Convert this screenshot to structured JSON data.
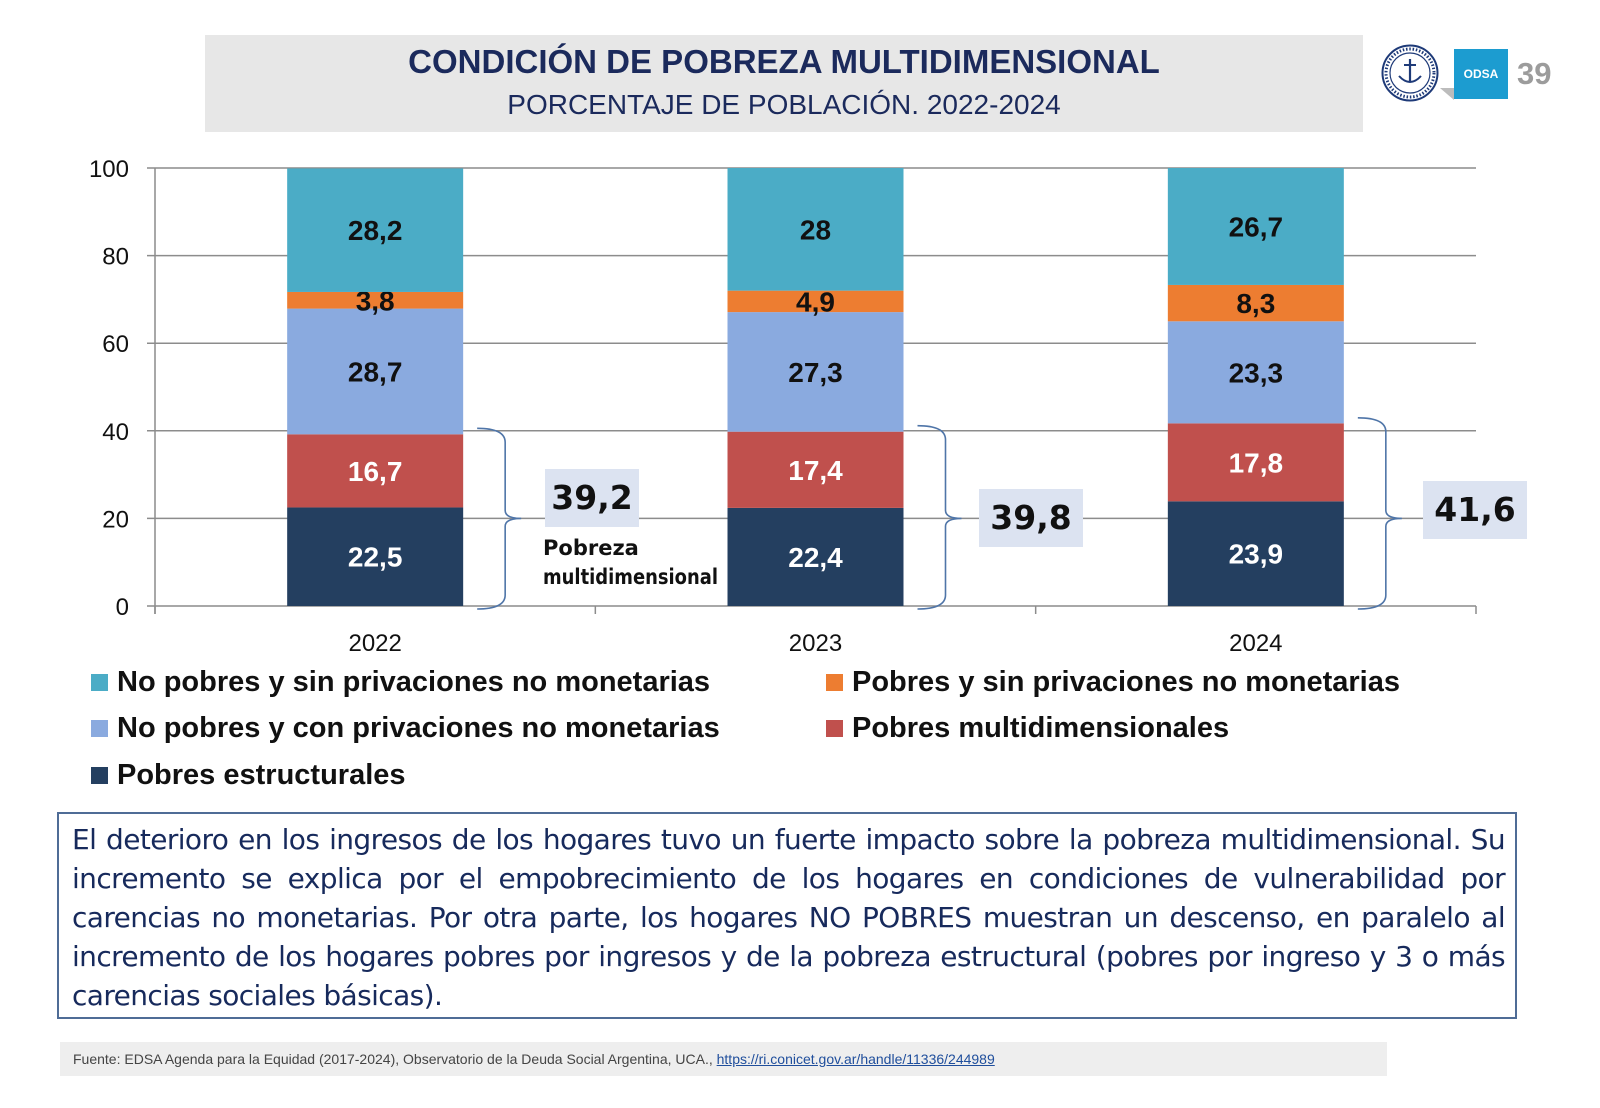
{
  "header": {
    "title": "CONDICIÓN DE POBREZA MULTIDIMENSIONAL",
    "subtitle": "PORCENTAJE DE POBLACIÓN. 2022-2024",
    "logo_odsa": "ODSA",
    "logo_seal_text": "UNIVERSIDAD CATÓLICA ARGENTINA",
    "page_number": "39"
  },
  "chart_data": {
    "type": "bar",
    "stacked": true,
    "title": "CONDICIÓN DE POBREZA MULTIDIMENSIONAL",
    "subtitle": "PORCENTAJE DE POBLACIÓN. 2022-2024",
    "xlabel": "",
    "ylabel": "",
    "ylim": [
      0,
      100
    ],
    "yticks": [
      "0",
      "20",
      "40",
      "60",
      "80",
      "100"
    ],
    "ytick_values": [
      0,
      20,
      40,
      60,
      80,
      100
    ],
    "grid": true,
    "legend_position": "bottom",
    "categories": [
      "2022",
      "2023",
      "2024"
    ],
    "series": [
      {
        "name": "Pobres estructurales",
        "color": "#243f60",
        "label_color": "#ffffff",
        "values": [
          22.5,
          22.4,
          23.9
        ],
        "labels": [
          "22,5",
          "22,4",
          "23,9"
        ]
      },
      {
        "name": "Pobres multidimensionales",
        "color": "#c0504d",
        "label_color": "#ffffff",
        "values": [
          16.7,
          17.4,
          17.8
        ],
        "labels": [
          "16,7",
          "17,4",
          "17,8"
        ]
      },
      {
        "name": "No pobres y con privaciones no monetarias",
        "color": "#8aaadf",
        "label_color": "#111111",
        "values": [
          28.7,
          27.3,
          23.3
        ],
        "labels": [
          "28,7",
          "27,3",
          "23,3"
        ]
      },
      {
        "name": "Pobres y sin privaciones no monetarias",
        "color": "#ed7d31",
        "label_color": "#111111",
        "values": [
          3.8,
          4.9,
          8.3
        ],
        "labels": [
          "3,8",
          "4,9",
          "8,3"
        ]
      },
      {
        "name": "No pobres y sin privaciones no monetarias",
        "color": "#4bacc6",
        "label_color": "#111111",
        "values": [
          28.2,
          28,
          26.7
        ],
        "labels": [
          "28,2",
          "28",
          "26,7"
        ]
      }
    ],
    "annotations": {
      "totals": [
        {
          "category": "2022",
          "value": 39.2,
          "label": "39,2"
        },
        {
          "category": "2023",
          "value": 39.8,
          "label": "39,8"
        },
        {
          "category": "2024",
          "value": 41.6,
          "label": "41,6"
        }
      ],
      "total_caption": [
        "Pobreza",
        "multidimensional"
      ]
    }
  },
  "legend": [
    {
      "label": "No pobres y sin privaciones no monetarias",
      "color": "#4bacc6"
    },
    {
      "label": "Pobres y sin privaciones no monetarias",
      "color": "#ed7d31"
    },
    {
      "label": "No pobres y con privaciones no monetarias",
      "color": "#8aaadf"
    },
    {
      "label": "Pobres multidimensionales",
      "color": "#c0504d"
    },
    {
      "label": "Pobres estructurales",
      "color": "#243f60"
    }
  ],
  "commentary": "El deterioro en los ingresos de los hogares tuvo un fuerte impacto sobre la pobreza multidimensional. Su incremento se explica por el empobrecimiento de los hogares en condiciones de vulnerabilidad por carencias no monetarias. Por otra parte, los hogares NO POBRES muestran un descenso, en paralelo al incremento de los hogares pobres por ingresos y de la pobreza estructural  (pobres por ingreso y 3 o más carencias sociales básicas).",
  "source": {
    "text": "Fuente: EDSA Agenda para la Equidad (2017-2024), Observatorio de la Deuda Social Argentina, UCA., ",
    "link": "https://ri.conicet.gov.ar/handle/11336/244989"
  }
}
